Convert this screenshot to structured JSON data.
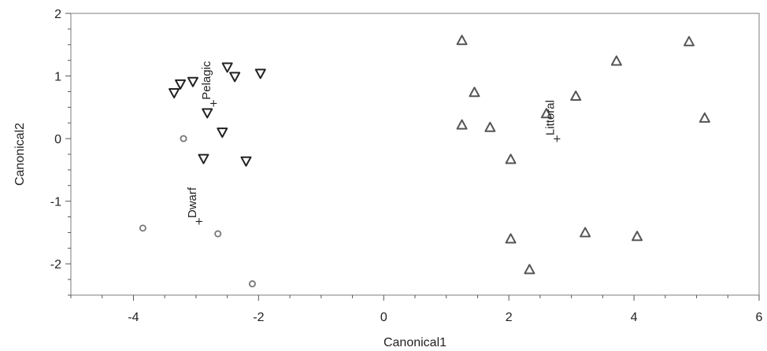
{
  "chart_data": {
    "type": "scatter",
    "title": "",
    "xlabel": "Canonical1",
    "ylabel": "Canonical2",
    "xlim": [
      -5,
      6
    ],
    "ylim": [
      -2.5,
      2
    ],
    "x_ticks": [
      -4,
      -2,
      0,
      2,
      4,
      6
    ],
    "y_ticks": [
      -2,
      -1,
      0,
      1,
      2
    ],
    "grid": false,
    "legend": "none",
    "series": [
      {
        "marker": "circle",
        "color": "#777777",
        "points": [
          [
            -3.2,
            0.0
          ],
          [
            -3.85,
            -1.43
          ],
          [
            -2.65,
            -1.52
          ],
          [
            -2.1,
            -2.32
          ]
        ]
      },
      {
        "marker": "triangle-down",
        "color": "#222222",
        "points": [
          [
            -3.35,
            0.73
          ],
          [
            -3.25,
            0.87
          ],
          [
            -3.05,
            0.91
          ],
          [
            -2.5,
            1.14
          ],
          [
            -2.38,
            0.99
          ],
          [
            -1.97,
            1.04
          ],
          [
            -2.82,
            0.41
          ],
          [
            -2.58,
            0.1
          ],
          [
            -2.88,
            -0.32
          ],
          [
            -2.2,
            -0.36
          ]
        ]
      },
      {
        "marker": "triangle-up",
        "color": "#555555",
        "points": [
          [
            1.25,
            1.57
          ],
          [
            1.45,
            0.74
          ],
          [
            1.25,
            0.22
          ],
          [
            1.7,
            0.18
          ],
          [
            2.03,
            -0.33
          ],
          [
            2.6,
            0.4
          ],
          [
            3.07,
            0.68
          ],
          [
            3.72,
            1.24
          ],
          [
            4.88,
            1.55
          ],
          [
            5.13,
            0.33
          ],
          [
            2.03,
            -1.6
          ],
          [
            2.33,
            -2.09
          ],
          [
            3.22,
            -1.5
          ],
          [
            4.05,
            -1.56
          ]
        ]
      }
    ],
    "centroids": [
      {
        "label": "Pelagic",
        "x": -2.72,
        "y": 0.57
      },
      {
        "label": "Littoral",
        "x": 2.77,
        "y": 0.0
      },
      {
        "label": "Dwarf",
        "x": -2.95,
        "y": -1.32
      }
    ]
  }
}
